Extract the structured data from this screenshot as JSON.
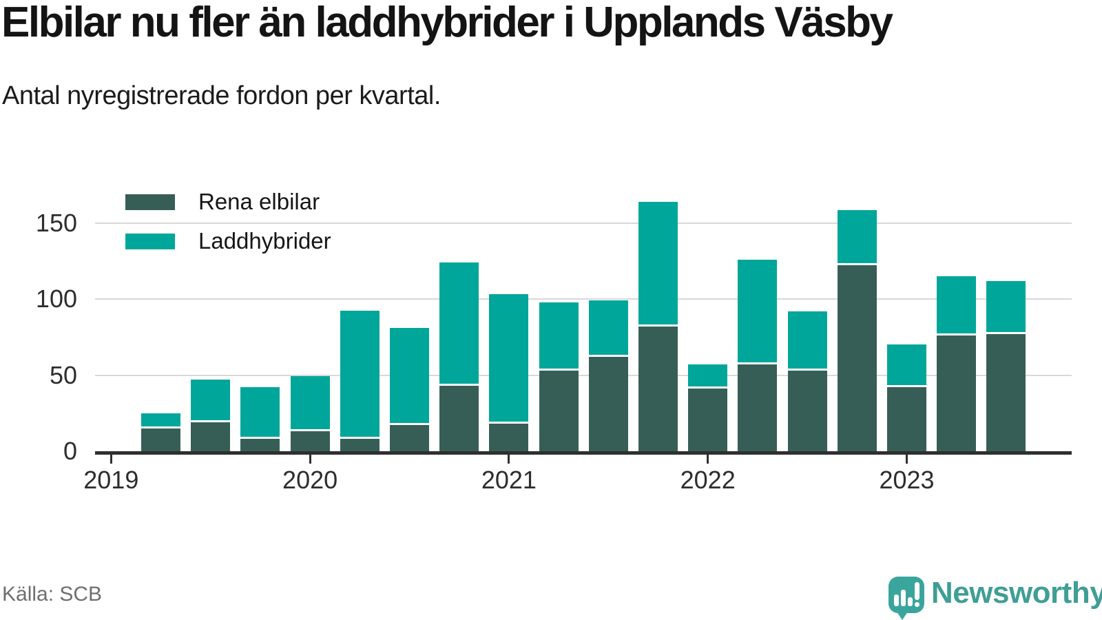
{
  "title": "Elbilar nu fler än laddhybrider i Upplands Väsby",
  "subtitle": "Antal nyregistrerade fordon per kvartal.",
  "source": "Källa: SCB",
  "logo": {
    "brand": "Newsworthy",
    "icon": "newsworthy-speech-bubble-chart-icon"
  },
  "colors": {
    "rena_elbilar": "#375e56",
    "laddhybrider": "#00a69a",
    "gridline": "#d8d8d8",
    "axis": "#2f2f2f",
    "logo_teal": "#3f9e95"
  },
  "legend": [
    {
      "label": "Rena elbilar",
      "color": "#375e56"
    },
    {
      "label": "Laddhybrider",
      "color": "#00a69a"
    }
  ],
  "chart_data": {
    "type": "bar",
    "stacked": true,
    "title": "Elbilar nu fler än laddhybrider i Upplands Väsby",
    "subtitle": "Antal nyregistrerade fordon per kvartal.",
    "categories": [
      "2019 Q1",
      "2019 Q2",
      "2019 Q3",
      "2019 Q4",
      "2020 Q1",
      "2020 Q2",
      "2020 Q3",
      "2020 Q4",
      "2021 Q1",
      "2021 Q2",
      "2021 Q3",
      "2021 Q4",
      "2022 Q1",
      "2022 Q2",
      "2022 Q3",
      "2022 Q4",
      "2023 Q1",
      "2023 Q2"
    ],
    "series": [
      {
        "name": "Rena elbilar",
        "color": "#375e56",
        "values": [
          15,
          19,
          8,
          13,
          8,
          17,
          43,
          18,
          53,
          62,
          82,
          41,
          57,
          53,
          122,
          42,
          76,
          77
        ]
      },
      {
        "name": "Laddhybrider",
        "color": "#00a69a",
        "values": [
          10,
          28,
          34,
          36,
          84,
          64,
          81,
          85,
          45,
          37,
          82,
          16,
          69,
          39,
          36,
          28,
          39,
          35
        ]
      }
    ],
    "totals": [
      25,
      47,
      42,
      49,
      92,
      81,
      124,
      103,
      98,
      99,
      164,
      57,
      126,
      92,
      158,
      70,
      115,
      112
    ],
    "xlabel": "",
    "ylabel": "",
    "x_tick_labels": [
      "2019",
      "2020",
      "2021",
      "2022",
      "2023"
    ],
    "y_ticks": [
      0,
      50,
      100,
      150
    ],
    "ylim": [
      0,
      170
    ],
    "grid": true,
    "legend_position": "inside-top-left"
  }
}
